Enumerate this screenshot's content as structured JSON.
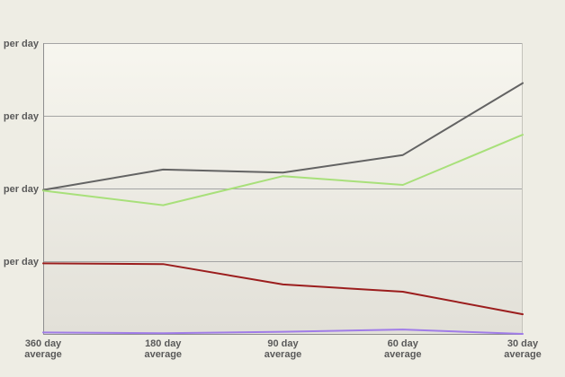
{
  "chart_data": {
    "type": "line",
    "title": "",
    "xlabel": "",
    "ylabel": "",
    "categories": [
      [
        "360 day",
        "average"
      ],
      [
        "180 day",
        "average"
      ],
      [
        "90 day",
        "average"
      ],
      [
        "60 day",
        "average"
      ],
      [
        "30 day",
        "average"
      ]
    ],
    "y_tick_labels": [
      "per day",
      "per day",
      "per day",
      "per day"
    ],
    "y_tick_values": [
      4,
      3,
      2,
      1
    ],
    "ylim": [
      0,
      4
    ],
    "grid": true,
    "legend": "none",
    "series": [
      {
        "color": "#636363",
        "values": [
          1.98,
          2.26,
          2.22,
          2.46,
          3.45
        ]
      },
      {
        "color": "#a8e07a",
        "values": [
          1.97,
          1.77,
          2.17,
          2.05,
          2.74
        ]
      },
      {
        "color": "#9b1d1d",
        "values": [
          0.97,
          0.96,
          0.68,
          0.58,
          0.27
        ]
      },
      {
        "color": "#a07ce8",
        "values": [
          0.02,
          0.01,
          0.03,
          0.06,
          0.0
        ]
      }
    ],
    "colors": {
      "background": "#eeede4",
      "plot_top": "#f7f6ef",
      "plot_bottom": "#e2e0d8",
      "grid": "#a4a4a4",
      "axis": "#8e8e8e",
      "text": "#5a5a5a"
    }
  }
}
